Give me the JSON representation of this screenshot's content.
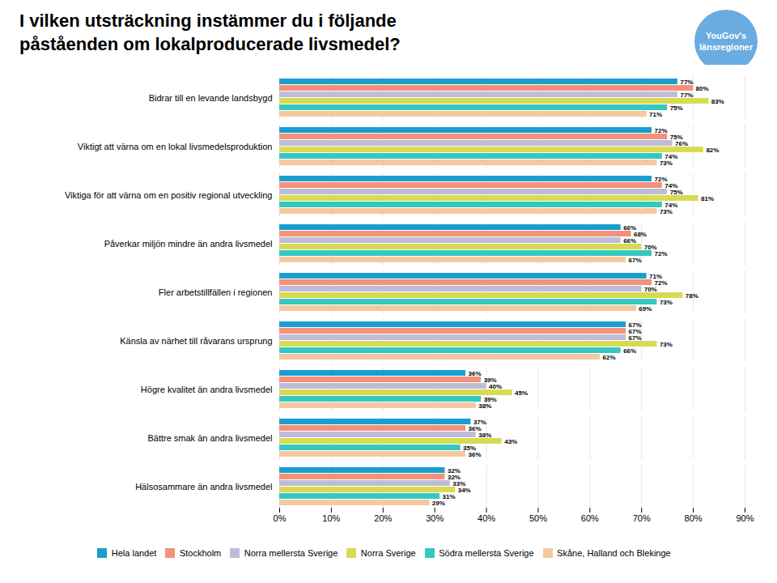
{
  "chart_data": {
    "type": "bar",
    "orientation": "horizontal",
    "title": "I vilken utsträckning instämmer du i följande\npåståenden om lokalproducerade livsmedel?",
    "annotations": [
      {
        "text": "YouGov's\nlänsregioner",
        "color": "#6aabe0"
      }
    ],
    "categories": [
      "Bidrar till en levande landsbygd",
      "Viktigt att värna om en lokal livsmedelsproduktion",
      "Viktiga för att värna om en positiv regional utveckling",
      "Påverkar miljön mindre än andra livsmedel",
      "Fler arbetstillfällen i regionen",
      "Känsla av närhet till råvarans ursprung",
      "Högre kvalitet än andra livsmedel",
      "Bättre smak än andra livsmedel",
      "Hälsosammare än andra livsmedel"
    ],
    "series": [
      {
        "name": "Hela landet",
        "color": "#1a9ece",
        "values": [
          77,
          72,
          72,
          66,
          71,
          67,
          36,
          37,
          32
        ],
        "value_labels": [
          "77%",
          "72%",
          "72%",
          "66%",
          "71%",
          "67%",
          "36%",
          "37%",
          "32%"
        ]
      },
      {
        "name": "Stockholm",
        "color": "#f4917a",
        "values": [
          80,
          75,
          74,
          68,
          72,
          67,
          39,
          36,
          32
        ],
        "value_labels": [
          "80%",
          "75%",
          "74%",
          "68%",
          "72%",
          "67%",
          "39%",
          "36%",
          "32%"
        ]
      },
      {
        "name": "Norra mellersta Sverige",
        "color": "#bdbdda",
        "values": [
          77,
          76,
          75,
          66,
          70,
          67,
          40,
          38,
          33
        ],
        "value_labels": [
          "77%",
          "76%",
          "75%",
          "66%",
          "70%",
          "67%",
          "40%",
          "38%",
          "33%"
        ]
      },
      {
        "name": "Norra Sverige",
        "color": "#d8db52",
        "values": [
          83,
          82,
          81,
          70,
          78,
          73,
          45,
          43,
          34
        ],
        "value_labels": [
          "83%",
          "82%",
          "81%",
          "70%",
          "78%",
          "73%",
          "45%",
          "43%",
          "34%"
        ]
      },
      {
        "name": "Södra mellersta Sverige",
        "color": "#35c8c0",
        "values": [
          75,
          74,
          74,
          72,
          73,
          66,
          39,
          35,
          31
        ],
        "value_labels": [
          "75%",
          "74%",
          "74%",
          "72%",
          "73%",
          "66%",
          "39%",
          "35%",
          "31%"
        ]
      },
      {
        "name": "Skåne, Halland och Blekinge",
        "color": "#f5c8a0",
        "values": [
          71,
          73,
          73,
          67,
          69,
          62,
          38,
          36,
          29
        ],
        "value_labels": [
          "71%",
          "73%",
          "73%",
          "67%",
          "69%",
          "62%",
          "38%",
          "36%",
          "29%"
        ]
      }
    ],
    "xlim": [
      0,
      90
    ],
    "xticks": [
      {
        "value": 0,
        "label": "0%"
      },
      {
        "value": 10,
        "label": "10%"
      },
      {
        "value": 20,
        "label": "20%"
      },
      {
        "value": 30,
        "label": "30%"
      },
      {
        "value": 40,
        "label": "40%"
      },
      {
        "value": 50,
        "label": "50%"
      },
      {
        "value": 60,
        "label": "60%"
      },
      {
        "value": 70,
        "label": "70%"
      },
      {
        "value": 80,
        "label": "80%"
      },
      {
        "value": 90,
        "label": "90%"
      }
    ],
    "grid": true,
    "data_labels": true,
    "legend": "bottom"
  }
}
